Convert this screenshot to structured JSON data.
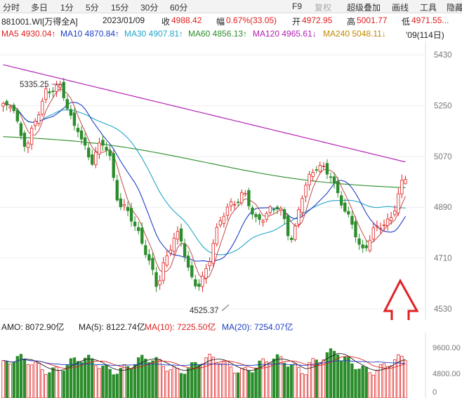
{
  "toolbar": {
    "left_tabs": [
      "分时",
      "多日",
      "1分",
      "5分",
      "15分",
      "30分",
      "60分"
    ],
    "right_tabs": [
      "F9",
      "复权",
      "超级叠加",
      "画线",
      "工具",
      "隐藏"
    ]
  },
  "info": {
    "code": "881001.WI[万得全A]",
    "date": "2023/01/09",
    "close_label": "收",
    "close_value": "4988.42",
    "change_label": "幅",
    "change_value": "0.67%(33.05)",
    "open_label": "开",
    "open_value": "4972.95",
    "high_label": "高",
    "high_value": "5001.77",
    "low_label": "低",
    "low_value": "4971.55..."
  },
  "ma": {
    "ma5": "MA5 4930.04↑",
    "ma10": "MA10 4870.84↑",
    "ma30": "MA30 4907.81↑",
    "ma60": "MA60 4856.13↑",
    "ma120": "MA120 4965.61↓",
    "ma240": "MA240 5048.11↓",
    "period": "'09(114日)"
  },
  "price_axis": {
    "labels": [
      "5430",
      "5250",
      "5070",
      "4890",
      "4710",
      "4530"
    ]
  },
  "annotations": {
    "high": "5335.25",
    "low": "4525.37"
  },
  "volume": {
    "amo": "AMO: 8072.90亿",
    "ma5": "MA(5): 8122.74亿",
    "ma10": "MA(10): 7225.50亿",
    "ma20": "MA(20): 7254.07亿",
    "axis": [
      "9600.00",
      "4800.00",
      "0"
    ]
  },
  "chart_data": {
    "type": "candlestick",
    "instrument": "881001.WI[万得全A]",
    "bars": 114,
    "price_range": [
      4490,
      5480
    ],
    "high_point": 5335.25,
    "low_point": 4525.37,
    "last": {
      "open": 4972.95,
      "high": 5001.77,
      "low": 4971.55,
      "close": 4988.42
    },
    "ma_latest": {
      "MA5": 4930.04,
      "MA10": 4870.84,
      "MA30": 4907.81,
      "MA60": 4856.13,
      "MA120": 4965.61,
      "MA240": 5048.11
    },
    "volume_latest": {
      "AMO": 8072.9,
      "MA5": 8122.74,
      "MA10": 7225.5,
      "MA20": 7254.07
    },
    "closes_sampled": [
      5250,
      5230,
      5270,
      5200,
      5120,
      5100,
      5150,
      5200,
      5260,
      5300,
      5290,
      5310,
      5320,
      5290,
      5240,
      5170,
      5160,
      5120,
      5080,
      5060,
      5090,
      5110,
      5100,
      5060,
      4950,
      4900,
      4880,
      4860,
      4830,
      4800,
      4760,
      4700,
      4650,
      4600,
      4680,
      4720,
      4760,
      4790,
      4770,
      4720,
      4650,
      4620,
      4610,
      4640,
      4700,
      4780,
      4830,
      4860,
      4880,
      4900,
      4920,
      4940,
      4930,
      4870,
      4840,
      4850,
      4870,
      4880,
      4880,
      4890,
      4850,
      4800,
      4780,
      4860,
      4930,
      4980,
      5020,
      5040,
      5030,
      5010,
      5000,
      4960,
      4930,
      4880,
      4840,
      4810,
      4760,
      4740,
      4770,
      4800,
      4810,
      4830,
      4840,
      4860,
      4900,
      4960,
      4988
    ],
    "series_colors": {
      "MA5": "#e02020",
      "MA10": "#1d3ec4",
      "MA30": "#22a6c8",
      "MA60": "#2c8d2c",
      "MA120": "#b320b3",
      "MA240": "#c08a00",
      "up": "#e02020",
      "down": "#2c8d2c"
    }
  }
}
